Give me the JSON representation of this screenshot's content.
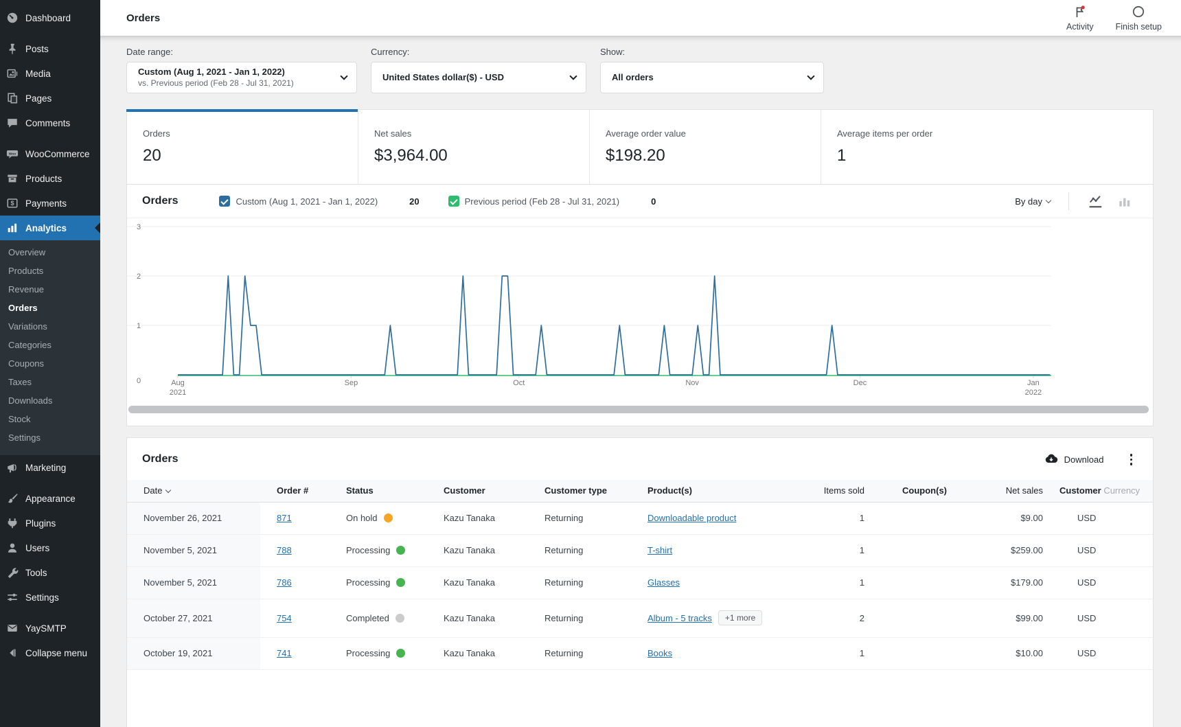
{
  "topbar": {
    "title": "Orders",
    "activity_label": "Activity",
    "finish_setup_label": "Finish setup"
  },
  "sidebar": {
    "items": [
      {
        "label": "Dashboard"
      },
      {
        "label": "Posts"
      },
      {
        "label": "Media"
      },
      {
        "label": "Pages"
      },
      {
        "label": "Comments"
      },
      {
        "label": "WooCommerce"
      },
      {
        "label": "Products"
      },
      {
        "label": "Payments"
      },
      {
        "label": "Analytics"
      },
      {
        "label": "Marketing"
      },
      {
        "label": "Appearance"
      },
      {
        "label": "Plugins"
      },
      {
        "label": "Users"
      },
      {
        "label": "Tools"
      },
      {
        "label": "Settings"
      },
      {
        "label": "YaySMTP"
      },
      {
        "label": "Collapse menu"
      }
    ],
    "submenu": [
      {
        "label": "Overview",
        "active": false
      },
      {
        "label": "Products",
        "active": false
      },
      {
        "label": "Revenue",
        "active": false
      },
      {
        "label": "Orders",
        "active": true
      },
      {
        "label": "Variations",
        "active": false
      },
      {
        "label": "Categories",
        "active": false
      },
      {
        "label": "Coupons",
        "active": false
      },
      {
        "label": "Taxes",
        "active": false
      },
      {
        "label": "Downloads",
        "active": false
      },
      {
        "label": "Stock",
        "active": false
      },
      {
        "label": "Settings",
        "active": false
      }
    ]
  },
  "filters": {
    "date_range": {
      "label": "Date range:",
      "value_line1": "Custom (Aug 1, 2021 - Jan 1, 2022)",
      "value_line2": "vs. Previous period (Feb 28 - Jul 31, 2021)"
    },
    "currency": {
      "label": "Currency:",
      "value": "United States dollar($) - USD"
    },
    "show": {
      "label": "Show:",
      "value": "All orders"
    }
  },
  "summary_tiles": [
    {
      "label": "Orders",
      "value": "20",
      "selected": true
    },
    {
      "label": "Net sales",
      "value": "$3,964.00",
      "selected": false
    },
    {
      "label": "Average order value",
      "value": "$198.20",
      "selected": false
    },
    {
      "label": "Average items per order",
      "value": "1",
      "selected": false
    }
  ],
  "chart": {
    "title": "Orders",
    "legend": [
      {
        "label": "Custom (Aug 1, 2021 - Jan 1, 2022)",
        "value": "20"
      },
      {
        "label": "Previous period (Feb 28 - Jul 31, 2021)",
        "value": "0"
      }
    ],
    "interval_label": "By day"
  },
  "chart_data": {
    "type": "line",
    "title": "Orders by day",
    "xlabel": "",
    "ylabel": "Orders",
    "y_axis": {
      "ticks": [
        0,
        1,
        2,
        3
      ],
      "max": 3
    },
    "x_axis": {
      "start": "Aug 1, 2021",
      "end": "Jan 1, 2022",
      "days_total": 154,
      "ticks": [
        {
          "label": "Aug",
          "sub": "2021",
          "day": 0
        },
        {
          "label": "Sep",
          "sub": "",
          "day": 31
        },
        {
          "label": "Oct",
          "sub": "",
          "day": 61
        },
        {
          "label": "Nov",
          "sub": "",
          "day": 92
        },
        {
          "label": "Dec",
          "sub": "",
          "day": 122
        },
        {
          "label": "Jan",
          "sub": "2022",
          "day": 153
        }
      ]
    },
    "grid": true,
    "legend_position": "top",
    "series": [
      {
        "name": "Custom (Aug 1, 2021 - Jan 1, 2022)",
        "total": 20,
        "color": "#2c6e9e",
        "note": "orders per day; all days are 0 except these day-offsets from Aug 1, 2021",
        "points_by_day_offset": {
          "9": 2,
          "12": 2,
          "13": 1,
          "14": 1,
          "38": 1,
          "51": 2,
          "58": 2,
          "59": 2,
          "65": 1,
          "79": 1,
          "87": 1,
          "93": 1,
          "96": 2,
          "117": 1
        }
      },
      {
        "name": "Previous period (Feb 28 - Jul 31, 2021)",
        "total": 0,
        "color": "#2dbd6e",
        "constant_value": 0
      }
    ]
  },
  "orders_table": {
    "title": "Orders",
    "download_label": "Download",
    "columns": [
      {
        "label": "Date",
        "bold": false,
        "sortable": true,
        "align": "left"
      },
      {
        "label": "Order #",
        "bold": true,
        "sortable": false,
        "align": "left"
      },
      {
        "label": "Status",
        "bold": true,
        "sortable": false,
        "align": "left"
      },
      {
        "label": "Customer",
        "bold": true,
        "sortable": false,
        "align": "left"
      },
      {
        "label": "Customer type",
        "bold": true,
        "sortable": false,
        "align": "left"
      },
      {
        "label": "Product(s)",
        "bold": true,
        "sortable": false,
        "align": "left"
      },
      {
        "label": "Items sold",
        "bold": false,
        "sortable": true,
        "align": "right"
      },
      {
        "label": "Coupon(s)",
        "bold": true,
        "sortable": true,
        "align": "right"
      },
      {
        "label": "Net sales",
        "bold": false,
        "sortable": true,
        "align": "right"
      },
      {
        "label": "Customer Currency",
        "bold": false,
        "sortable": false,
        "align": "left",
        "clipped": true
      }
    ],
    "rows": [
      {
        "date": "November 26, 2021",
        "order": "871",
        "status": "On hold",
        "status_key": "on_hold",
        "customer": "Kazu Tanaka",
        "customer_type": "Returning",
        "product": "Downloadable product",
        "more": "",
        "items_sold": "1",
        "coupons": "",
        "net_sales": "$9.00",
        "currency": "USD"
      },
      {
        "date": "November 5, 2021",
        "order": "788",
        "status": "Processing",
        "status_key": "processing",
        "customer": "Kazu Tanaka",
        "customer_type": "Returning",
        "product": "T-shirt",
        "more": "",
        "items_sold": "1",
        "coupons": "",
        "net_sales": "$259.00",
        "currency": "USD"
      },
      {
        "date": "November 5, 2021",
        "order": "786",
        "status": "Processing",
        "status_key": "processing",
        "customer": "Kazu Tanaka",
        "customer_type": "Returning",
        "product": "Glasses",
        "more": "",
        "items_sold": "1",
        "coupons": "",
        "net_sales": "$179.00",
        "currency": "USD"
      },
      {
        "date": "October 27, 2021",
        "order": "754",
        "status": "Completed",
        "status_key": "completed",
        "customer": "Kazu Tanaka",
        "customer_type": "Returning",
        "product": "Album - 5 tracks",
        "more": "+1 more",
        "items_sold": "2",
        "coupons": "",
        "net_sales": "$99.00",
        "currency": "USD"
      },
      {
        "date": "October 19, 2021",
        "order": "741",
        "status": "Processing",
        "status_key": "processing",
        "customer": "Kazu Tanaka",
        "customer_type": "Returning",
        "product": "Books",
        "more": "",
        "items_sold": "1",
        "coupons": "",
        "net_sales": "$10.00",
        "currency": "USD"
      }
    ]
  },
  "colors": {
    "accent_blue": "#2271b1",
    "chart_current": "#2c6e9e",
    "chart_previous": "#2dbd6e",
    "status_on_hold": "#f5a623",
    "status_processing": "#46b450",
    "status_completed": "#cccccc",
    "link": "#2271b1",
    "sidebar_bg": "#1d2327",
    "sidebar_submenu_bg": "#2c3338",
    "notification_dot": "#d63638"
  }
}
